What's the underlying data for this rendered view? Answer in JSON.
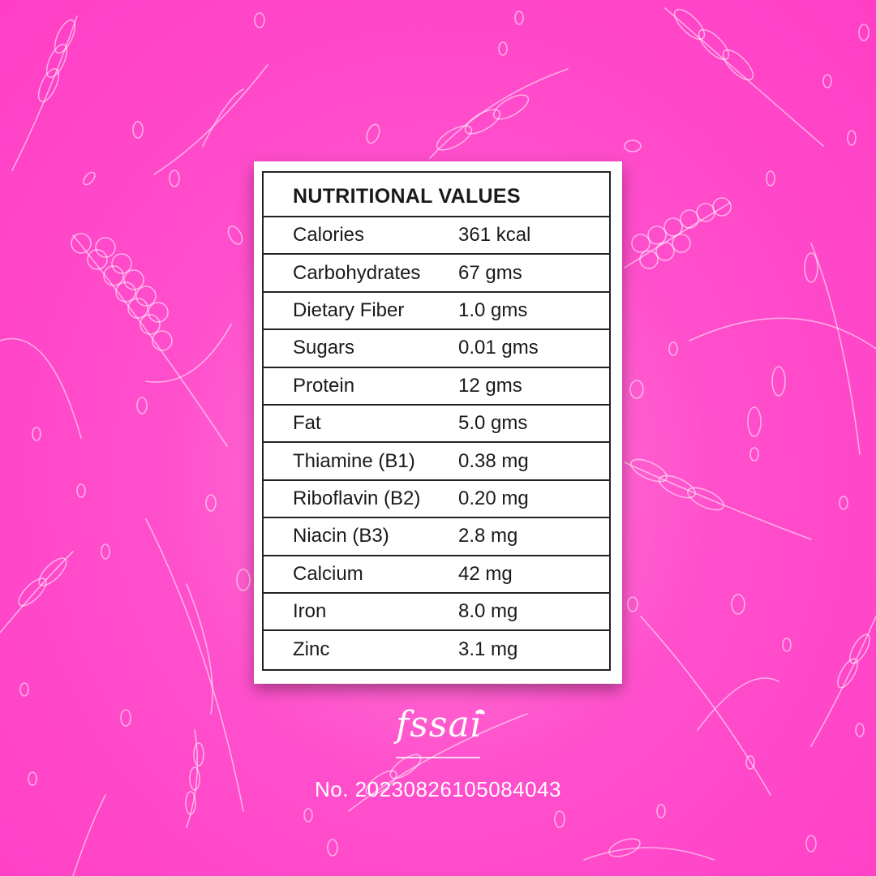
{
  "table": {
    "title": "NUTRITIONAL VALUES",
    "rows": [
      {
        "nutrient": "Calories",
        "amount": "361 kcal"
      },
      {
        "nutrient": "Carbohydrates",
        "amount": "67 gms"
      },
      {
        "nutrient": "Dietary Fiber",
        "amount": "1.0 gms"
      },
      {
        "nutrient": "Sugars",
        "amount": "0.01 gms"
      },
      {
        "nutrient": "Protein",
        "amount": "12 gms"
      },
      {
        "nutrient": "Fat",
        "amount": "5.0 gms"
      },
      {
        "nutrient": "Thiamine (B1)",
        "amount": "0.38 mg"
      },
      {
        "nutrient": "Riboflavin (B2)",
        "amount": "0.20 mg"
      },
      {
        "nutrient": "Niacin (B3)",
        "amount": "2.8 mg"
      },
      {
        "nutrient": "Calcium",
        "amount": "42 mg"
      },
      {
        "nutrient": "Iron",
        "amount": "8.0 mg"
      },
      {
        "nutrient": "Zinc",
        "amount": "3.1 mg"
      }
    ]
  },
  "footer": {
    "logo_text": "fssai",
    "license_number": "No. 20230826105084043"
  },
  "colors": {
    "background": "#ff4fcc",
    "card": "#ffffff",
    "border": "#222222"
  }
}
